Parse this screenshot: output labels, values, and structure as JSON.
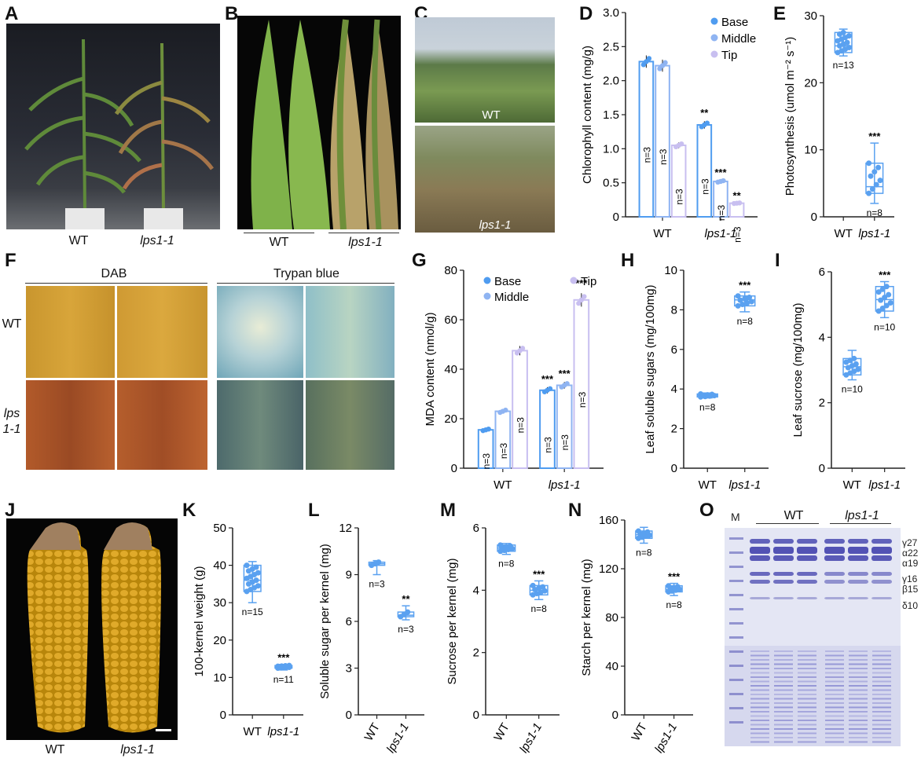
{
  "colors": {
    "base": "#4f9cf0",
    "middle": "#8fb4f2",
    "tip": "#c8bff0",
    "point": "#5aa1f0",
    "soil": "#2d2d2d"
  },
  "panels": {
    "A": {
      "letter": "A",
      "labels": [
        "WT",
        "lps1-1"
      ]
    },
    "B": {
      "letter": "B",
      "labels": [
        "WT",
        "lps1-1"
      ]
    },
    "C": {
      "letter": "C",
      "labels": [
        "WT",
        "lps1-1"
      ]
    },
    "D": {
      "letter": "D"
    },
    "E": {
      "letter": "E"
    },
    "F": {
      "letter": "F",
      "col_headers": [
        "DAB",
        "Trypan blue"
      ],
      "row_labels": [
        "WT",
        "lps",
        "1-1"
      ]
    },
    "G": {
      "letter": "G"
    },
    "H": {
      "letter": "H"
    },
    "I": {
      "letter": "I"
    },
    "J": {
      "letter": "J",
      "labels": [
        "WT",
        "lps1-1"
      ]
    },
    "K": {
      "letter": "K"
    },
    "L": {
      "letter": "L"
    },
    "M": {
      "letter": "M"
    },
    "N": {
      "letter": "N"
    },
    "O": {
      "letter": "O",
      "marker": "M",
      "groups": [
        "WT",
        "lps1-1"
      ],
      "bands": [
        "γ27",
        "α22",
        "α19",
        "γ16",
        "β15",
        "δ10"
      ]
    }
  },
  "chart_data": [
    {
      "id": "D",
      "type": "bar",
      "ylabel": "Chlorophyll content (mg/g)",
      "ylim": [
        0,
        3.0
      ],
      "yticks": [
        "0",
        "0.5",
        "1.0",
        "1.5",
        "2.0",
        "2.5",
        "3.0"
      ],
      "categories": [
        "WT",
        "lps1-1"
      ],
      "legend": [
        "Base",
        "Middle",
        "Tip"
      ],
      "legend_pos": "top-right",
      "series": [
        {
          "name": "Base",
          "values": [
            2.28,
            1.35
          ],
          "n": [
            "n=3",
            "n=3"
          ],
          "sig": [
            "",
            "**"
          ]
        },
        {
          "name": "Middle",
          "values": [
            2.22,
            0.52
          ],
          "n": [
            "n=3",
            "n=3"
          ],
          "sig": [
            "",
            "***"
          ]
        },
        {
          "name": "Tip",
          "values": [
            1.05,
            0.2
          ],
          "n": [
            "n=3",
            "n=3"
          ],
          "sig": [
            "",
            "**"
          ]
        }
      ]
    },
    {
      "id": "E",
      "type": "scatter",
      "ylabel": "Photosynthesis (umol m⁻² s⁻¹)",
      "ylim": [
        0,
        30
      ],
      "yticks": [
        "0",
        "10",
        "20",
        "30"
      ],
      "categories": [
        "WT",
        "lps1-1"
      ],
      "medians": [
        25.5,
        4.5
      ],
      "boxes": [
        [
          24.5,
          27.5
        ],
        [
          3.5,
          8.0
        ]
      ],
      "whiskers": [
        [
          24,
          28
        ],
        [
          2,
          11
        ]
      ],
      "n": [
        "n=13",
        "n=8"
      ],
      "sig": [
        "",
        "***"
      ]
    },
    {
      "id": "G",
      "type": "bar",
      "ylabel": "MDA content (nmol/g)",
      "ylim": [
        0,
        80
      ],
      "yticks": [
        "0",
        "20",
        "40",
        "60",
        "80"
      ],
      "categories": [
        "WT",
        "lps1-1"
      ],
      "legend": [
        "Base",
        "Middle",
        "Tip"
      ],
      "legend_pos": "top",
      "series": [
        {
          "name": "Base",
          "values": [
            15.5,
            31.5
          ],
          "n": [
            "n=3",
            "n=3"
          ],
          "sig": [
            "",
            "***"
          ]
        },
        {
          "name": "Middle",
          "values": [
            23,
            33.5
          ],
          "n": [
            "n=3",
            "n=3"
          ],
          "sig": [
            "",
            "***"
          ]
        },
        {
          "name": "Tip",
          "values": [
            47.5,
            68
          ],
          "n": [
            "n=3",
            "n=3"
          ],
          "sig": [
            "",
            "***"
          ]
        }
      ]
    },
    {
      "id": "H",
      "type": "scatter",
      "ylabel": "Leaf soluble  sugars (mg/100mg)",
      "ylim": [
        0,
        10
      ],
      "yticks": [
        "0",
        "2",
        "4",
        "6",
        "8",
        "10"
      ],
      "categories": [
        "WT",
        "lps1-1"
      ],
      "medians": [
        3.68,
        8.5
      ],
      "boxes": [
        [
          3.6,
          3.75
        ],
        [
          8.2,
          8.7
        ]
      ],
      "whiskers": [
        [
          3.55,
          3.8
        ],
        [
          7.9,
          8.9
        ]
      ],
      "n": [
        "n=8",
        "n=8"
      ],
      "sig": [
        "",
        "***"
      ],
      "box_group": 1
    },
    {
      "id": "I",
      "type": "scatter",
      "ylabel": "Leaf sucrose (mg/100mg)",
      "ylim": [
        0,
        6
      ],
      "yticks": [
        "0",
        "2",
        "4",
        "6"
      ],
      "categories": [
        "WT",
        "lps1-1"
      ],
      "medians": [
        3.1,
        5.15
      ],
      "boxes": [
        [
          2.85,
          3.35
        ],
        [
          4.8,
          5.55
        ]
      ],
      "whiskers": [
        [
          2.7,
          3.6
        ],
        [
          4.6,
          5.7
        ]
      ],
      "n": [
        "n=10",
        "n=10"
      ],
      "sig": [
        "",
        "***"
      ]
    },
    {
      "id": "K",
      "type": "scatter",
      "ylabel": "100-kernel weight (g)",
      "ylim": [
        0,
        50
      ],
      "yticks": [
        "0",
        "10",
        "20",
        "30",
        "40",
        "50"
      ],
      "categories": [
        "WT",
        "lps1-1"
      ],
      "medians": [
        36,
        12.8
      ],
      "boxes": [
        [
          33,
          40
        ],
        [
          12.5,
          13.2
        ]
      ],
      "whiskers": [
        [
          30,
          41
        ],
        [
          12,
          13.5
        ]
      ],
      "n": [
        "n=15",
        "n=11"
      ],
      "sig": [
        "",
        "***"
      ],
      "box_group": 0
    },
    {
      "id": "L",
      "type": "scatter",
      "ylabel": "Soluble sugar per kernel (mg)",
      "ylim": [
        0,
        12
      ],
      "yticks": [
        "0",
        "3",
        "6",
        "9",
        "12"
      ],
      "categories": [
        "WT",
        "lps1-1"
      ],
      "medians": [
        9.7,
        6.4
      ],
      "boxes": [
        [
          9.6,
          9.8
        ],
        [
          6.3,
          6.6
        ]
      ],
      "whiskers": [
        [
          9.0,
          9.9
        ],
        [
          6.1,
          7.0
        ]
      ],
      "n": [
        "n=3",
        "n=3"
      ],
      "sig": [
        "",
        "**"
      ]
    },
    {
      "id": "M",
      "type": "scatter",
      "ylabel": "Sucrose per kernel (mg)",
      "ylim": [
        0,
        6
      ],
      "yticks": [
        "0",
        "2",
        "4",
        "6"
      ],
      "categories": [
        "WT",
        "lps1-1"
      ],
      "medians": [
        5.35,
        4.0
      ],
      "boxes": [
        [
          5.25,
          5.45
        ],
        [
          3.85,
          4.15
        ]
      ],
      "whiskers": [
        [
          5.15,
          5.5
        ],
        [
          3.7,
          4.3
        ]
      ],
      "n": [
        "n=8",
        "n=8"
      ],
      "sig": [
        "",
        "***"
      ]
    },
    {
      "id": "N",
      "type": "scatter",
      "ylabel": "Starch per kernel (mg)",
      "ylim": [
        0,
        160
      ],
      "yticks": [
        "0",
        "40",
        "80",
        "120",
        "160"
      ],
      "categories": [
        "WT",
        "lps1-1"
      ],
      "medians": [
        148,
        103
      ],
      "boxes": [
        [
          145,
          151
        ],
        [
          101,
          106
        ]
      ],
      "whiskers": [
        [
          141,
          154
        ],
        [
          98,
          108
        ]
      ],
      "n": [
        "n=8",
        "n=8"
      ],
      "sig": [
        "",
        "***"
      ]
    }
  ]
}
